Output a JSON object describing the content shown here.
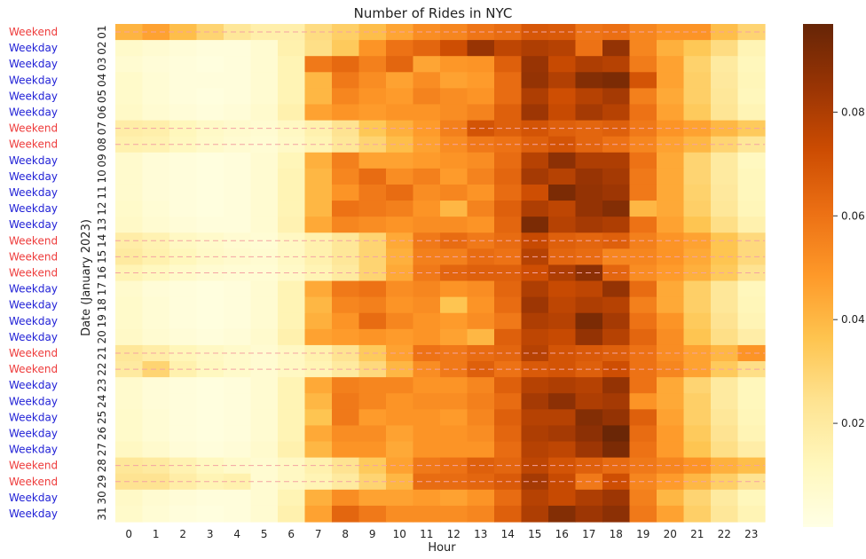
{
  "chart_data": {
    "type": "heatmap",
    "title": "Number of Rides in NYC",
    "xlabel": "Hour",
    "ylabel": "Date (January 2023)",
    "x_categories": [
      "0",
      "1",
      "2",
      "3",
      "4",
      "5",
      "6",
      "7",
      "8",
      "9",
      "10",
      "11",
      "12",
      "13",
      "14",
      "15",
      "16",
      "17",
      "18",
      "19",
      "20",
      "21",
      "22",
      "23"
    ],
    "y_categories": [
      "01",
      "02",
      "03",
      "04",
      "05",
      "06",
      "07",
      "08",
      "09",
      "10",
      "11",
      "12",
      "13",
      "14",
      "15",
      "16",
      "17",
      "18",
      "19",
      "20",
      "21",
      "22",
      "23",
      "24",
      "25",
      "26",
      "27",
      "28",
      "29",
      "30",
      "31"
    ],
    "day_type_labels": [
      "Weekend",
      "Weekday",
      "Weekday",
      "Weekday",
      "Weekday",
      "Weekday",
      "Weekend",
      "Weekend",
      "Weekday",
      "Weekday",
      "Weekday",
      "Weekday",
      "Weekday",
      "Weekend",
      "Weekend",
      "Weekend",
      "Weekday",
      "Weekday",
      "Weekday",
      "Weekday",
      "Weekend",
      "Weekend",
      "Weekday",
      "Weekday",
      "Weekday",
      "Weekday",
      "Weekday",
      "Weekend",
      "Weekend",
      "Weekday",
      "Weekday"
    ],
    "day_type_colors": {
      "Weekend": "#ee3b3b",
      "Weekday": "#1f1fd6"
    },
    "weekend_line_color": "#f4a3a3",
    "colorbar": {
      "min": 0.0,
      "max": 0.097,
      "ticks": [
        0.02,
        0.04,
        0.06,
        0.08
      ],
      "tick_labels": [
        "0.02",
        "0.04",
        "0.06",
        "0.08"
      ]
    },
    "colormap": "YlOrBr",
    "values": [
      [
        0.041,
        0.046,
        0.038,
        0.03,
        0.022,
        0.017,
        0.017,
        0.027,
        0.032,
        0.038,
        0.045,
        0.052,
        0.054,
        0.059,
        0.062,
        0.069,
        0.068,
        0.059,
        0.061,
        0.054,
        0.05,
        0.05,
        0.038,
        0.03
      ],
      [
        0.008,
        0.006,
        0.004,
        0.003,
        0.003,
        0.006,
        0.016,
        0.026,
        0.034,
        0.05,
        0.06,
        0.064,
        0.072,
        0.085,
        0.076,
        0.08,
        0.078,
        0.06,
        0.086,
        0.054,
        0.042,
        0.035,
        0.027,
        0.014
      ],
      [
        0.006,
        0.004,
        0.003,
        0.002,
        0.003,
        0.006,
        0.014,
        0.058,
        0.063,
        0.056,
        0.064,
        0.045,
        0.049,
        0.05,
        0.066,
        0.085,
        0.074,
        0.08,
        0.078,
        0.057,
        0.046,
        0.031,
        0.02,
        0.012
      ],
      [
        0.008,
        0.005,
        0.003,
        0.003,
        0.003,
        0.006,
        0.014,
        0.04,
        0.058,
        0.052,
        0.046,
        0.052,
        0.046,
        0.048,
        0.062,
        0.086,
        0.079,
        0.09,
        0.092,
        0.07,
        0.046,
        0.032,
        0.021,
        0.013
      ],
      [
        0.008,
        0.005,
        0.003,
        0.002,
        0.003,
        0.006,
        0.014,
        0.04,
        0.054,
        0.05,
        0.048,
        0.055,
        0.052,
        0.05,
        0.062,
        0.08,
        0.072,
        0.078,
        0.082,
        0.056,
        0.044,
        0.032,
        0.022,
        0.012
      ],
      [
        0.009,
        0.006,
        0.004,
        0.003,
        0.004,
        0.007,
        0.016,
        0.046,
        0.05,
        0.048,
        0.05,
        0.05,
        0.052,
        0.055,
        0.066,
        0.084,
        0.074,
        0.082,
        0.078,
        0.06,
        0.046,
        0.034,
        0.023,
        0.014
      ],
      [
        0.018,
        0.017,
        0.012,
        0.009,
        0.007,
        0.006,
        0.01,
        0.016,
        0.024,
        0.035,
        0.042,
        0.048,
        0.056,
        0.07,
        0.066,
        0.07,
        0.066,
        0.064,
        0.066,
        0.058,
        0.05,
        0.046,
        0.04,
        0.034
      ],
      [
        0.016,
        0.015,
        0.011,
        0.008,
        0.006,
        0.005,
        0.009,
        0.014,
        0.022,
        0.03,
        0.038,
        0.046,
        0.052,
        0.058,
        0.06,
        0.066,
        0.07,
        0.064,
        0.06,
        0.054,
        0.046,
        0.04,
        0.03,
        0.022
      ],
      [
        0.007,
        0.004,
        0.003,
        0.002,
        0.003,
        0.006,
        0.013,
        0.042,
        0.056,
        0.046,
        0.046,
        0.048,
        0.05,
        0.052,
        0.062,
        0.078,
        0.088,
        0.08,
        0.08,
        0.06,
        0.044,
        0.03,
        0.02,
        0.011
      ],
      [
        0.007,
        0.004,
        0.003,
        0.002,
        0.003,
        0.006,
        0.014,
        0.04,
        0.054,
        0.062,
        0.052,
        0.056,
        0.048,
        0.055,
        0.064,
        0.082,
        0.078,
        0.085,
        0.082,
        0.058,
        0.044,
        0.03,
        0.02,
        0.012
      ],
      [
        0.007,
        0.004,
        0.003,
        0.002,
        0.003,
        0.006,
        0.014,
        0.04,
        0.05,
        0.058,
        0.062,
        0.052,
        0.054,
        0.05,
        0.062,
        0.072,
        0.092,
        0.086,
        0.084,
        0.058,
        0.044,
        0.031,
        0.021,
        0.012
      ],
      [
        0.008,
        0.005,
        0.003,
        0.002,
        0.003,
        0.006,
        0.014,
        0.04,
        0.06,
        0.058,
        0.056,
        0.05,
        0.04,
        0.055,
        0.066,
        0.08,
        0.076,
        0.086,
        0.09,
        0.04,
        0.044,
        0.032,
        0.022,
        0.013
      ],
      [
        0.009,
        0.006,
        0.004,
        0.003,
        0.003,
        0.006,
        0.015,
        0.044,
        0.054,
        0.052,
        0.05,
        0.052,
        0.052,
        0.05,
        0.064,
        0.092,
        0.078,
        0.082,
        0.08,
        0.06,
        0.046,
        0.036,
        0.026,
        0.016
      ],
      [
        0.018,
        0.015,
        0.01,
        0.008,
        0.006,
        0.005,
        0.01,
        0.016,
        0.022,
        0.03,
        0.044,
        0.058,
        0.062,
        0.058,
        0.062,
        0.074,
        0.066,
        0.064,
        0.066,
        0.056,
        0.05,
        0.046,
        0.036,
        0.028
      ],
      [
        0.02,
        0.016,
        0.012,
        0.009,
        0.007,
        0.006,
        0.01,
        0.016,
        0.022,
        0.03,
        0.042,
        0.056,
        0.056,
        0.062,
        0.06,
        0.078,
        0.064,
        0.062,
        0.054,
        0.054,
        0.05,
        0.044,
        0.036,
        0.028
      ],
      [
        0.014,
        0.011,
        0.008,
        0.006,
        0.005,
        0.005,
        0.009,
        0.014,
        0.02,
        0.03,
        0.044,
        0.058,
        0.064,
        0.066,
        0.066,
        0.072,
        0.08,
        0.088,
        0.064,
        0.052,
        0.048,
        0.042,
        0.034,
        0.024
      ],
      [
        0.007,
        0.004,
        0.003,
        0.002,
        0.003,
        0.006,
        0.014,
        0.044,
        0.058,
        0.06,
        0.052,
        0.054,
        0.05,
        0.052,
        0.064,
        0.08,
        0.074,
        0.076,
        0.086,
        0.062,
        0.044,
        0.032,
        0.022,
        0.012
      ],
      [
        0.008,
        0.005,
        0.003,
        0.002,
        0.003,
        0.006,
        0.014,
        0.04,
        0.054,
        0.056,
        0.05,
        0.052,
        0.036,
        0.05,
        0.062,
        0.084,
        0.076,
        0.08,
        0.078,
        0.056,
        0.044,
        0.032,
        0.022,
        0.013
      ],
      [
        0.008,
        0.005,
        0.003,
        0.002,
        0.003,
        0.006,
        0.014,
        0.042,
        0.05,
        0.062,
        0.054,
        0.05,
        0.048,
        0.052,
        0.058,
        0.08,
        0.078,
        0.092,
        0.082,
        0.06,
        0.05,
        0.034,
        0.024,
        0.014
      ],
      [
        0.009,
        0.006,
        0.004,
        0.003,
        0.004,
        0.007,
        0.016,
        0.046,
        0.048,
        0.05,
        0.048,
        0.05,
        0.046,
        0.04,
        0.066,
        0.076,
        0.074,
        0.086,
        0.078,
        0.064,
        0.052,
        0.036,
        0.026,
        0.018
      ],
      [
        0.022,
        0.018,
        0.013,
        0.01,
        0.008,
        0.006,
        0.01,
        0.016,
        0.024,
        0.034,
        0.046,
        0.06,
        0.058,
        0.062,
        0.064,
        0.078,
        0.07,
        0.068,
        0.066,
        0.06,
        0.052,
        0.046,
        0.04,
        0.05
      ],
      [
        0.02,
        0.03,
        0.016,
        0.011,
        0.008,
        0.006,
        0.01,
        0.014,
        0.02,
        0.028,
        0.04,
        0.052,
        0.058,
        0.066,
        0.06,
        0.068,
        0.07,
        0.066,
        0.072,
        0.06,
        0.054,
        0.046,
        0.034,
        0.026
      ],
      [
        0.007,
        0.004,
        0.003,
        0.002,
        0.003,
        0.006,
        0.014,
        0.044,
        0.056,
        0.054,
        0.054,
        0.05,
        0.05,
        0.054,
        0.066,
        0.078,
        0.08,
        0.078,
        0.086,
        0.06,
        0.044,
        0.03,
        0.02,
        0.012
      ],
      [
        0.007,
        0.004,
        0.003,
        0.002,
        0.003,
        0.006,
        0.014,
        0.04,
        0.058,
        0.054,
        0.05,
        0.052,
        0.052,
        0.056,
        0.062,
        0.082,
        0.088,
        0.08,
        0.082,
        0.05,
        0.044,
        0.032,
        0.02,
        0.012
      ],
      [
        0.008,
        0.005,
        0.003,
        0.002,
        0.003,
        0.006,
        0.014,
        0.036,
        0.058,
        0.048,
        0.05,
        0.05,
        0.048,
        0.054,
        0.066,
        0.078,
        0.078,
        0.09,
        0.086,
        0.066,
        0.046,
        0.032,
        0.022,
        0.013
      ],
      [
        0.008,
        0.005,
        0.003,
        0.002,
        0.003,
        0.006,
        0.014,
        0.044,
        0.052,
        0.052,
        0.046,
        0.05,
        0.05,
        0.052,
        0.064,
        0.08,
        0.082,
        0.088,
        0.096,
        0.062,
        0.048,
        0.034,
        0.024,
        0.014
      ],
      [
        0.01,
        0.007,
        0.004,
        0.003,
        0.004,
        0.007,
        0.016,
        0.04,
        0.05,
        0.05,
        0.044,
        0.05,
        0.05,
        0.05,
        0.062,
        0.078,
        0.076,
        0.084,
        0.092,
        0.06,
        0.048,
        0.036,
        0.026,
        0.018
      ],
      [
        0.022,
        0.02,
        0.015,
        0.011,
        0.008,
        0.006,
        0.01,
        0.016,
        0.024,
        0.034,
        0.046,
        0.058,
        0.06,
        0.066,
        0.064,
        0.076,
        0.07,
        0.066,
        0.062,
        0.058,
        0.054,
        0.05,
        0.042,
        0.038
      ],
      [
        0.024,
        0.024,
        0.018,
        0.014,
        0.016,
        0.006,
        0.01,
        0.014,
        0.02,
        0.03,
        0.04,
        0.062,
        0.062,
        0.064,
        0.068,
        0.082,
        0.074,
        0.058,
        0.072,
        0.054,
        0.048,
        0.04,
        0.032,
        0.024
      ],
      [
        0.009,
        0.006,
        0.004,
        0.003,
        0.003,
        0.006,
        0.014,
        0.042,
        0.052,
        0.046,
        0.046,
        0.048,
        0.046,
        0.05,
        0.062,
        0.078,
        0.074,
        0.08,
        0.084,
        0.056,
        0.04,
        0.03,
        0.02,
        0.012
      ],
      [
        0.008,
        0.005,
        0.003,
        0.002,
        0.003,
        0.006,
        0.016,
        0.046,
        0.064,
        0.058,
        0.052,
        0.052,
        0.052,
        0.054,
        0.066,
        0.08,
        0.09,
        0.084,
        0.088,
        0.058,
        0.046,
        0.032,
        0.022,
        0.014
      ]
    ]
  }
}
